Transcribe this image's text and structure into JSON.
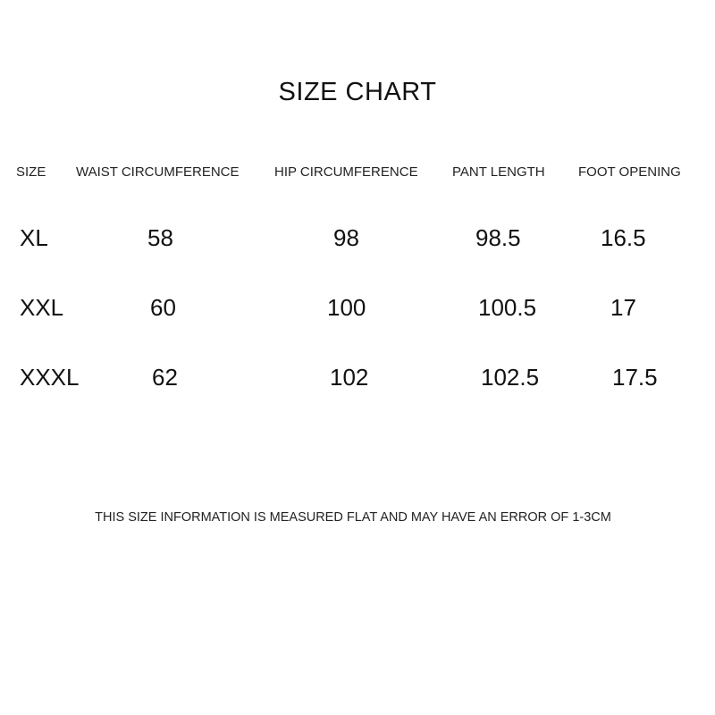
{
  "title": "SIZE CHART",
  "headers": [
    "SIZE",
    "WAIST CIRCUMFERENCE",
    "HIP CIRCUMFERENCE",
    "PANT LENGTH",
    "FOOT OPENING"
  ],
  "rows": [
    [
      "XL",
      "58",
      "98",
      "98.5",
      "16.5"
    ],
    [
      "XXL",
      "60",
      "100",
      "100.5",
      "17"
    ],
    [
      "XXXL",
      "62",
      "102",
      "102.5",
      "17.5"
    ]
  ],
  "note": "THIS SIZE INFORMATION IS MEASURED FLAT AND MAY HAVE AN ERROR OF 1-3CM"
}
